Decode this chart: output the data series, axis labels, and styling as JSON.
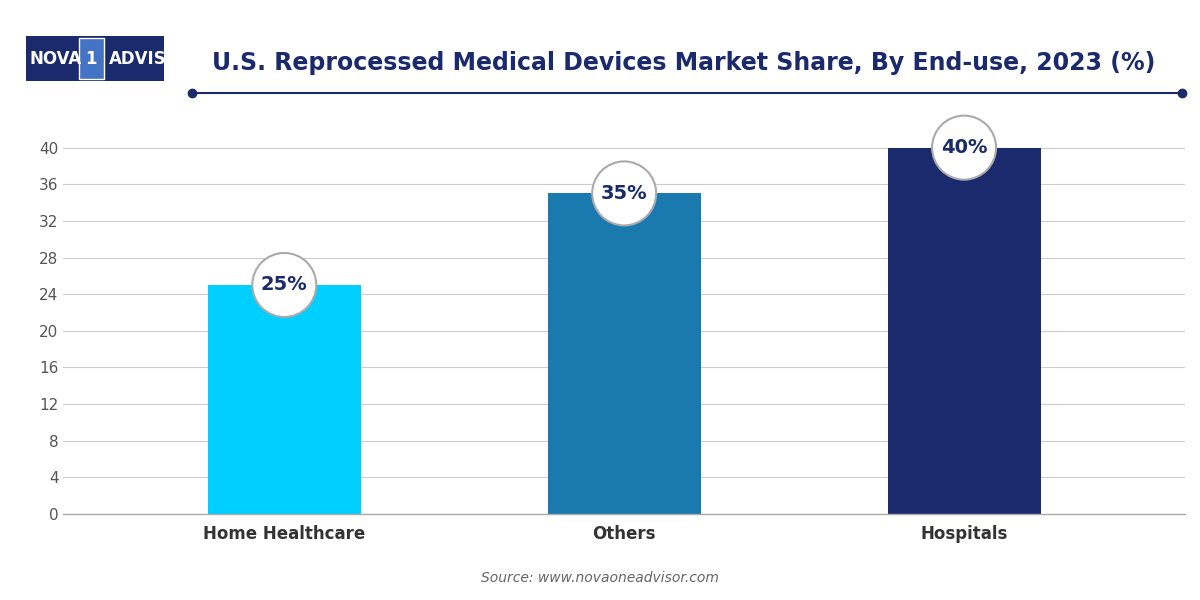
{
  "title": "U.S. Reprocessed Medical Devices Market Share, By End-use, 2023 (%)",
  "categories": [
    "Home Healthcare",
    "Others",
    "Hospitals"
  ],
  "values": [
    25,
    35,
    40
  ],
  "labels": [
    "25%",
    "35%",
    "40%"
  ],
  "bar_colors": [
    "#00CFFF",
    "#1A7AAF",
    "#1A2A6C"
  ],
  "ylim": [
    0,
    44
  ],
  "yticks": [
    0,
    4,
    8,
    12,
    16,
    20,
    24,
    28,
    32,
    36,
    40
  ],
  "background_color": "#FFFFFF",
  "grid_color": "#CCCCCC",
  "title_color": "#1A2A6C",
  "title_fontsize": 17,
  "axis_label_fontsize": 12,
  "value_fontsize": 14,
  "source_text": "Source: www.novaoneadvisor.com",
  "circle_edge_color": "#AAAAAA",
  "text_color": "#1A2A6C",
  "bar_width": 0.45,
  "logo_bg": "#1A2A6C",
  "logo_mid_bg": "#4472C4",
  "line_color": "#1A2A6C"
}
